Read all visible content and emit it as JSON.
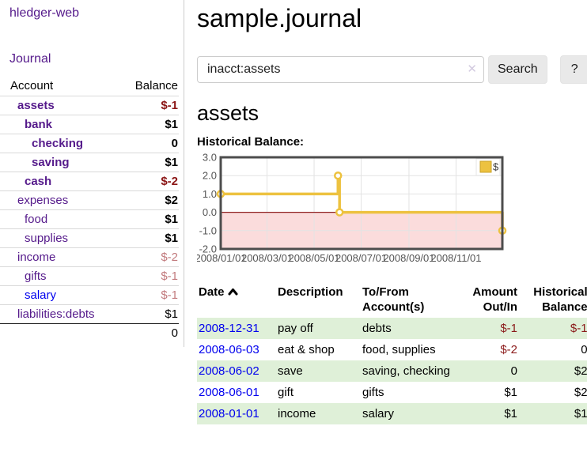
{
  "app": {
    "brand": "hledger-web",
    "nav_journal": "Journal"
  },
  "colors": {
    "link_purple": "#551a8b",
    "link_blue": "#0000ee",
    "negative_strong": "#8b1515",
    "negative_soft": "#c27b7e",
    "row_stripe_green": "#dff0d8",
    "chart_gold": "#edc240",
    "chart_negative_region": "#fbdcdc",
    "chart_zero_line": "#8f2020"
  },
  "sidebar": {
    "columns": {
      "account": "Account",
      "balance": "Balance"
    },
    "rows": [
      {
        "account": "assets",
        "indent": 1,
        "bold": true,
        "link_color": "purple",
        "balance": "$-1",
        "balance_class": "neg-strong"
      },
      {
        "account": "bank",
        "indent": 2,
        "bold": true,
        "link_color": "purple",
        "balance": "$1",
        "balance_class": "pos"
      },
      {
        "account": "checking",
        "indent": 3,
        "bold": true,
        "link_color": "purple",
        "balance": "0",
        "balance_class": "pos"
      },
      {
        "account": "saving",
        "indent": 3,
        "bold": true,
        "link_color": "purple",
        "balance": "$1",
        "balance_class": "pos"
      },
      {
        "account": "cash",
        "indent": 2,
        "bold": true,
        "link_color": "purple",
        "balance": "$-2",
        "balance_class": "neg-strong"
      },
      {
        "account": "expenses",
        "indent": 1,
        "bold": false,
        "link_color": "purple",
        "balance": "$2",
        "balance_class": "pos"
      },
      {
        "account": "food",
        "indent": 2,
        "bold": false,
        "link_color": "purple",
        "balance": "$1",
        "balance_class": "pos"
      },
      {
        "account": "supplies",
        "indent": 2,
        "bold": false,
        "link_color": "purple",
        "balance": "$1",
        "balance_class": "pos"
      },
      {
        "account": "income",
        "indent": 1,
        "bold": false,
        "link_color": "purple",
        "balance": "$-2",
        "balance_class": "neg-soft"
      },
      {
        "account": "gifts",
        "indent": 2,
        "bold": false,
        "link_color": "purple",
        "balance": "$-1",
        "balance_class": "neg-soft"
      },
      {
        "account": "salary",
        "indent": 2,
        "bold": false,
        "link_color": "blue",
        "balance": "$-1",
        "balance_class": "neg-soft"
      },
      {
        "account": "liabilities:debts",
        "indent": 1,
        "bold": false,
        "link_color": "purple",
        "balance": "$1",
        "balance_class": "plain"
      }
    ],
    "total": "0"
  },
  "header": {
    "title": "sample.journal"
  },
  "search": {
    "value": "inacct:assets",
    "clear_icon": "✕",
    "button": "Search",
    "help_button": "?"
  },
  "account_page": {
    "heading": "assets",
    "chart_label": "Historical Balance:"
  },
  "chart_data": {
    "type": "line",
    "title": "Historical Balance:",
    "step": true,
    "grid": true,
    "legend_position": "top-right",
    "ylim": [
      -2,
      3
    ],
    "y_ticks": [
      3.0,
      2.0,
      1.0,
      0.0,
      -1.0,
      -2.0
    ],
    "x_range_days": [
      0,
      365
    ],
    "x_tick_days": [
      0,
      60,
      121,
      182,
      244,
      305
    ],
    "x_tick_labels": [
      "2008/01/01",
      "2008/03/01",
      "2008/05/01",
      "2008/07/01",
      "2008/09/01",
      "2008/11/01"
    ],
    "series": [
      {
        "name": "$",
        "color": "#edc240",
        "points": [
          {
            "date": "2008-01-01",
            "day": 0,
            "value": 1
          },
          {
            "date": "2008-06-01",
            "day": 152,
            "value": 2
          },
          {
            "date": "2008-06-03",
            "day": 154,
            "value": 0
          },
          {
            "date": "2008-12-31",
            "day": 365,
            "value": -1
          }
        ]
      }
    ],
    "negative_region_color": "#fbdcdc",
    "zero_line_color": "#8f2020",
    "grid_color": "#e3e3e3",
    "border_color": "#4d4d4d",
    "tick_label_color": "#545454"
  },
  "register": {
    "headers": {
      "date": "Date",
      "description": "Description",
      "accounts": "To/From Account(s)",
      "amount": "Amount Out/In",
      "balance": "Historical Balance"
    },
    "sort": {
      "column": "date",
      "direction": "asc"
    },
    "rows": [
      {
        "date": "2008-12-31",
        "description": "pay off",
        "accounts": "debts",
        "amount": "$-1",
        "amount_negative": true,
        "balance": "$-1",
        "balance_negative": true
      },
      {
        "date": "2008-06-03",
        "description": "eat & shop",
        "accounts": "food, supplies",
        "amount": "$-2",
        "amount_negative": true,
        "balance": "0",
        "balance_negative": false
      },
      {
        "date": "2008-06-02",
        "description": "save",
        "accounts": "saving, checking",
        "amount": "0",
        "amount_negative": false,
        "balance": "$2",
        "balance_negative": false
      },
      {
        "date": "2008-06-01",
        "description": "gift",
        "accounts": "gifts",
        "amount": "$1",
        "amount_negative": false,
        "balance": "$2",
        "balance_negative": false
      },
      {
        "date": "2008-01-01",
        "description": "income",
        "accounts": "salary",
        "amount": "$1",
        "amount_negative": false,
        "balance": "$1",
        "balance_negative": false
      }
    ]
  }
}
